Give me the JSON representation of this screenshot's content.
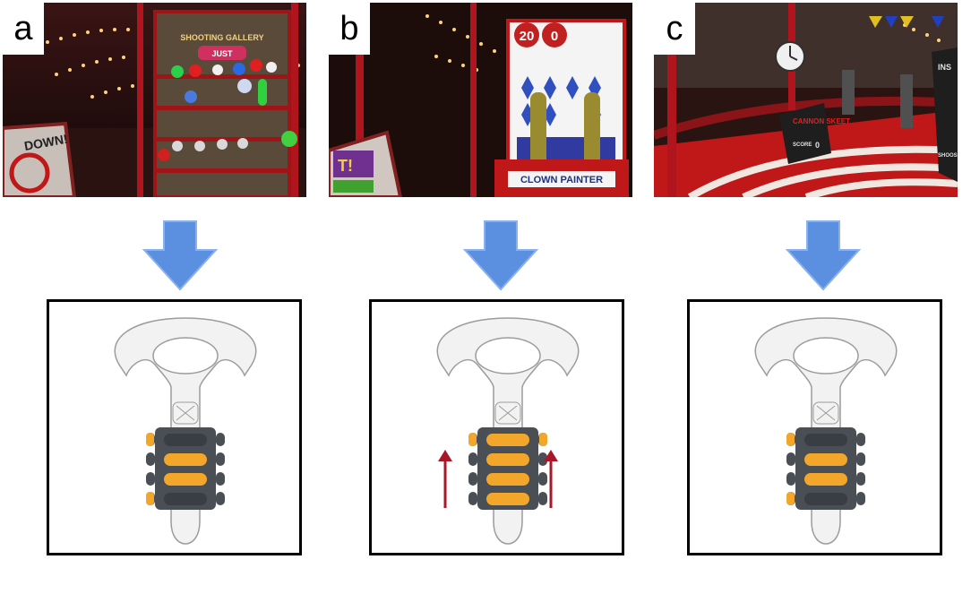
{
  "panels": [
    {
      "letter": "a",
      "scene": {
        "booth_sign": "SHOOTING GALLERY",
        "booth_sub": "JUST",
        "side_sign": "DOWN!"
      },
      "tactile": {
        "active_rows": [
          2,
          3
        ],
        "arrows": false
      }
    },
    {
      "letter": "b",
      "scene": {
        "score_left": "20",
        "score_right": "0",
        "booth_sign": "CLOWN PAINTER",
        "side_sign": "T!"
      },
      "tactile": {
        "active_rows": [
          1,
          2,
          3,
          4
        ],
        "arrows": true
      }
    },
    {
      "letter": "c",
      "scene": {
        "booth_sign": "CANNON SKEET",
        "score_label": "SCORE",
        "score_value": "0",
        "side_sign": "INS",
        "side_sign_2": "SHOOS"
      },
      "tactile": {
        "active_rows": [
          2,
          3
        ],
        "arrows": false
      }
    }
  ],
  "colors": {
    "arrow_fill": "#5b8fe0",
    "tactile_hot": "#f2a62a",
    "tactile_warm": "#e05a1f",
    "arrow_red": "#a8182a"
  }
}
